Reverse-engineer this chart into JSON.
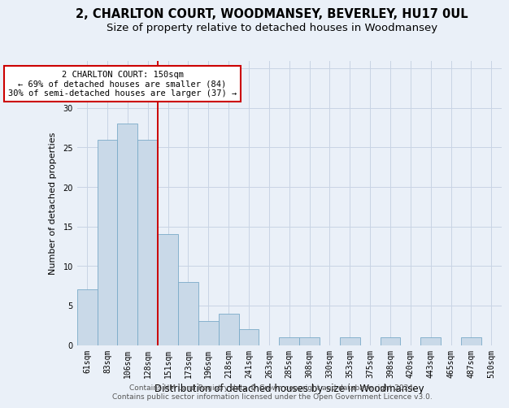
{
  "title": "2, CHARLTON COURT, WOODMANSEY, BEVERLEY, HU17 0UL",
  "subtitle": "Size of property relative to detached houses in Woodmansey",
  "xlabel": "Distribution of detached houses by size in Woodmansey",
  "ylabel": "Number of detached properties",
  "categories": [
    "61sqm",
    "83sqm",
    "106sqm",
    "128sqm",
    "151sqm",
    "173sqm",
    "196sqm",
    "218sqm",
    "241sqm",
    "263sqm",
    "285sqm",
    "308sqm",
    "330sqm",
    "353sqm",
    "375sqm",
    "398sqm",
    "420sqm",
    "443sqm",
    "465sqm",
    "487sqm",
    "510sqm"
  ],
  "values": [
    7,
    26,
    28,
    26,
    14,
    8,
    3,
    4,
    2,
    0,
    1,
    1,
    0,
    1,
    0,
    1,
    0,
    1,
    0,
    1,
    0
  ],
  "bar_color": "#c9d9e8",
  "bar_edge_color": "#7aaac8",
  "grid_color": "#c8d4e4",
  "background_color": "#eaf0f8",
  "annotation_line1": "2 CHARLTON COURT: 150sqm",
  "annotation_line2": "← 69% of detached houses are smaller (84)",
  "annotation_line3": "30% of semi-detached houses are larger (37) →",
  "annotation_box_color": "#ffffff",
  "annotation_box_edge_color": "#cc0000",
  "ref_line_color": "#cc0000",
  "ref_line_x": 3.5,
  "ylim": [
    0,
    36
  ],
  "yticks": [
    0,
    5,
    10,
    15,
    20,
    25,
    30,
    35
  ],
  "footer1": "Contains HM Land Registry data © Crown copyright and database right 2024.",
  "footer2": "Contains public sector information licensed under the Open Government Licence v3.0.",
  "title_fontsize": 10.5,
  "subtitle_fontsize": 9.5,
  "xlabel_fontsize": 8.5,
  "ylabel_fontsize": 8,
  "tick_fontsize": 7,
  "footer_fontsize": 6.5,
  "ann_fontsize": 7.5
}
